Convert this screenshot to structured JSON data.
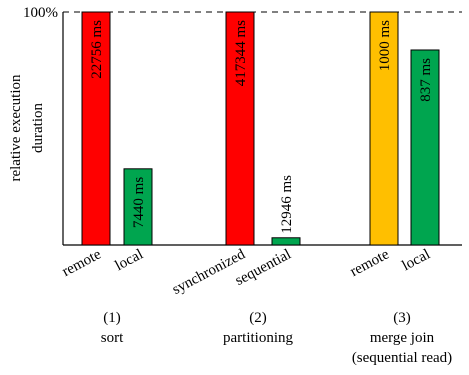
{
  "chart_data": {
    "type": "bar",
    "ylabel": "relative execution duration",
    "ylabel_lines": [
      "relative execution",
      "duration"
    ],
    "reference_label": "100%",
    "ylim": [
      0,
      1
    ],
    "grid": false,
    "colors": {
      "remote": "#ff0000",
      "local": "#00a54f",
      "sync": "#ff0000",
      "seq": "#00a54f",
      "read": "#ffbf00"
    },
    "groups": [
      {
        "number": "(1)",
        "name": "sort",
        "bars": [
          {
            "category": "remote",
            "value": 1.0,
            "ms_label": "22756 ms",
            "color": "#ff0000"
          },
          {
            "category": "local",
            "value": 0.327,
            "ms_label": "7440 ms",
            "color": "#00a54f"
          }
        ]
      },
      {
        "number": "(2)",
        "name": "partitioning",
        "bars": [
          {
            "category": "synchronized",
            "value": 1.0,
            "ms_label": "417344 ms",
            "color": "#ff0000"
          },
          {
            "category": "sequential",
            "value": 0.031,
            "ms_label": "12946 ms",
            "color": "#00a54f"
          }
        ]
      },
      {
        "number": "(3)",
        "name": "merge join",
        "subname": "(sequential read)",
        "bars": [
          {
            "category": "remote",
            "value": 1.0,
            "ms_label": "1000 ms",
            "color": "#ffbf00"
          },
          {
            "category": "local",
            "value": 0.837,
            "ms_label": "837 ms",
            "color": "#00a54f"
          }
        ]
      }
    ]
  }
}
